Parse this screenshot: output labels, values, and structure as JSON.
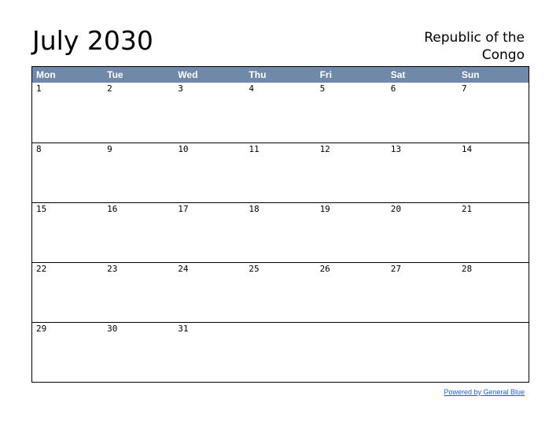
{
  "title": "July 2030",
  "country_line1": "Republic of the",
  "country_line2": "Congo",
  "weekdays": [
    "Mon",
    "Tue",
    "Wed",
    "Thu",
    "Fri",
    "Sat",
    "Sun"
  ],
  "weeks": [
    [
      "1",
      "2",
      "3",
      "4",
      "5",
      "6",
      "7"
    ],
    [
      "8",
      "9",
      "10",
      "11",
      "12",
      "13",
      "14"
    ],
    [
      "15",
      "16",
      "17",
      "18",
      "19",
      "20",
      "21"
    ],
    [
      "22",
      "23",
      "24",
      "25",
      "26",
      "27",
      "28"
    ],
    [
      "29",
      "30",
      "31",
      "",
      "",
      "",
      ""
    ]
  ],
  "footer_link": "Powered by General Blue",
  "colors": {
    "header_bg": "#7189a8",
    "header_text": "#ffffff",
    "link": "#1f5fcf"
  }
}
